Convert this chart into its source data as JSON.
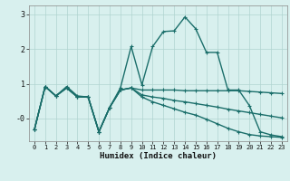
{
  "xlabel": "Humidex (Indice chaleur)",
  "background_color": "#d8f0ee",
  "grid_color": "#b0d4d0",
  "line_color": "#1a6e6a",
  "xlim": [
    -0.5,
    23.5
  ],
  "ylim": [
    -0.65,
    3.25
  ],
  "series": [
    {
      "x": [
        0,
        1,
        2,
        3,
        4,
        5,
        6,
        7,
        8,
        9,
        10,
        11,
        12,
        13,
        14,
        15,
        16,
        17,
        18,
        19,
        20,
        21,
        22,
        23
      ],
      "y": [
        -0.32,
        0.92,
        0.65,
        0.92,
        0.65,
        0.62,
        -0.38,
        0.32,
        0.88,
        2.07,
        0.97,
        2.07,
        2.5,
        2.52,
        2.92,
        2.58,
        1.9,
        1.9,
        0.82,
        0.82,
        0.37,
        -0.38,
        -0.47,
        -0.52
      ]
    },
    {
      "x": [
        0,
        1,
        2,
        3,
        4,
        5,
        6,
        7,
        8,
        9,
        10,
        11,
        12,
        13,
        14,
        15,
        16,
        17,
        18,
        19,
        20,
        21,
        22,
        23
      ],
      "y": [
        -0.32,
        0.92,
        0.65,
        0.88,
        0.62,
        0.62,
        -0.38,
        0.32,
        0.82,
        0.88,
        0.82,
        0.82,
        0.82,
        0.82,
        0.8,
        0.8,
        0.8,
        0.8,
        0.8,
        0.8,
        0.78,
        0.76,
        0.74,
        0.72
      ]
    },
    {
      "x": [
        0,
        1,
        2,
        3,
        4,
        5,
        6,
        7,
        8,
        9,
        10,
        11,
        12,
        13,
        14,
        15,
        16,
        17,
        18,
        19,
        20,
        21,
        22,
        23
      ],
      "y": [
        -0.32,
        0.92,
        0.65,
        0.88,
        0.62,
        0.62,
        -0.38,
        0.32,
        0.82,
        0.88,
        0.68,
        0.62,
        0.58,
        0.52,
        0.48,
        0.43,
        0.38,
        0.33,
        0.27,
        0.22,
        0.17,
        0.12,
        0.07,
        0.02
      ]
    },
    {
      "x": [
        0,
        1,
        2,
        3,
        4,
        5,
        6,
        7,
        8,
        9,
        10,
        11,
        12,
        13,
        14,
        15,
        16,
        17,
        18,
        19,
        20,
        21,
        22,
        23
      ],
      "y": [
        -0.32,
        0.92,
        0.65,
        0.88,
        0.62,
        0.62,
        -0.38,
        0.32,
        0.82,
        0.88,
        0.62,
        0.48,
        0.38,
        0.28,
        0.18,
        0.1,
        -0.02,
        -0.15,
        -0.28,
        -0.38,
        -0.46,
        -0.5,
        -0.52,
        -0.54
      ]
    }
  ]
}
